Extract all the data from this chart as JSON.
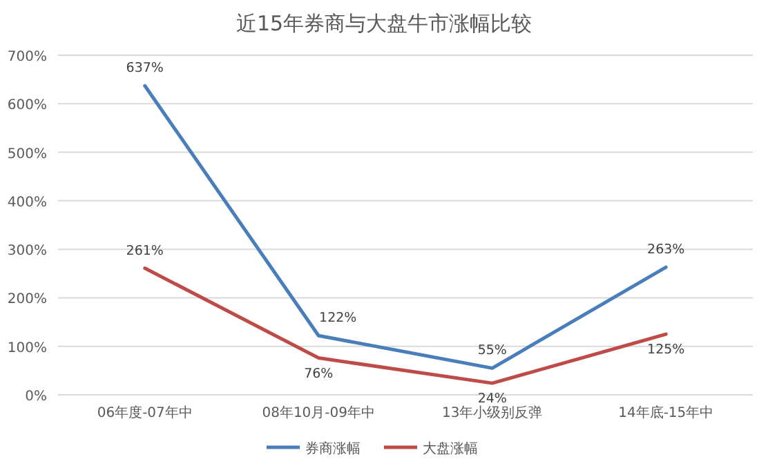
{
  "chart_data": {
    "type": "line",
    "title": "近15年券商与大盘牛市涨幅比较",
    "categories": [
      "06年度-07年中",
      "08年10月-09年中",
      "13年小级别反弹",
      "14年底-15年中"
    ],
    "series": [
      {
        "name": "券商涨幅",
        "color": "#4a7ebb",
        "values": [
          637,
          122,
          55,
          263
        ],
        "value_labels": [
          "637%",
          "122%",
          "55%",
          "263%"
        ]
      },
      {
        "name": "大盘涨幅",
        "color": "#be4b48",
        "values": [
          261,
          76,
          24,
          125
        ],
        "value_labels": [
          "261%",
          "76%",
          "24%",
          "125%"
        ]
      }
    ],
    "ylim": [
      0,
      700
    ],
    "yticks": [
      {
        "value": 0,
        "label": "0%"
      },
      {
        "value": 100,
        "label": "100%"
      },
      {
        "value": 200,
        "label": "200%"
      },
      {
        "value": 300,
        "label": "300%"
      },
      {
        "value": 400,
        "label": "400%"
      },
      {
        "value": 500,
        "label": "500%"
      },
      {
        "value": 600,
        "label": "600%"
      },
      {
        "value": 700,
        "label": "700%"
      }
    ],
    "grid": "y",
    "legend": "bottom",
    "marker": "none",
    "line_style": "solid"
  }
}
